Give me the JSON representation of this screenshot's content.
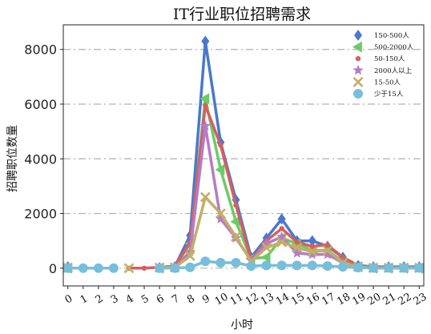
{
  "chart_data": {
    "type": "line",
    "title": "IT行业职位招聘需求",
    "xlabel": "小时",
    "ylabel": "招聘职位数量",
    "categories": [
      "0",
      "1",
      "2",
      "3",
      "4",
      "5",
      "6",
      "7",
      "8",
      "9",
      "10",
      "11",
      "12",
      "13",
      "14",
      "15",
      "16",
      "17",
      "18",
      "19",
      "20",
      "21",
      "22",
      "23"
    ],
    "ylim": [
      -650,
      8900
    ],
    "yticks": [
      0,
      2000,
      4000,
      6000,
      8000
    ],
    "grid": "horizontal dash-dot",
    "legend_position": "top-right",
    "series": [
      {
        "name": "150-500人",
        "color": "#4878cf",
        "marker": "diamond",
        "values": [
          50,
          null,
          null,
          null,
          null,
          null,
          20,
          50,
          1200,
          8300,
          4600,
          2500,
          400,
          1100,
          1800,
          1000,
          1000,
          800,
          400,
          100,
          50,
          50,
          50,
          50
        ]
      },
      {
        "name": "500-2000人",
        "color": "#6acc65",
        "marker": "triangle-left",
        "values": [
          0,
          null,
          null,
          null,
          null,
          null,
          0,
          30,
          900,
          6200,
          3600,
          1700,
          350,
          400,
          1100,
          900,
          650,
          650,
          250,
          50,
          0,
          0,
          0,
          0
        ]
      },
      {
        "name": "50-150人",
        "color": "#d65f5f",
        "marker": "circle-small",
        "values": [
          20,
          null,
          null,
          null,
          0,
          0,
          30,
          80,
          950,
          5950,
          4500,
          2300,
          300,
          1000,
          1450,
          950,
          800,
          850,
          400,
          70,
          30,
          20,
          20,
          20
        ]
      },
      {
        "name": "2000人以上",
        "color": "#b47cc7",
        "marker": "star",
        "values": [
          0,
          null,
          null,
          null,
          null,
          null,
          0,
          20,
          600,
          5200,
          1800,
          1100,
          280,
          900,
          1150,
          550,
          500,
          500,
          200,
          40,
          0,
          0,
          0,
          0
        ]
      },
      {
        "name": "15-50人",
        "color": "#c4ad66",
        "marker": "x",
        "values": [
          10,
          null,
          null,
          null,
          0,
          null,
          20,
          30,
          450,
          2600,
          2000,
          1150,
          250,
          750,
          950,
          750,
          600,
          650,
          200,
          50,
          10,
          10,
          10,
          10
        ]
      },
      {
        "name": "少于15人",
        "color": "#77bedb",
        "marker": "circle-large",
        "values": [
          0,
          0,
          0,
          0,
          null,
          null,
          0,
          0,
          30,
          250,
          200,
          200,
          80,
          100,
          100,
          100,
          100,
          80,
          50,
          20,
          10,
          10,
          10,
          10
        ]
      }
    ]
  }
}
